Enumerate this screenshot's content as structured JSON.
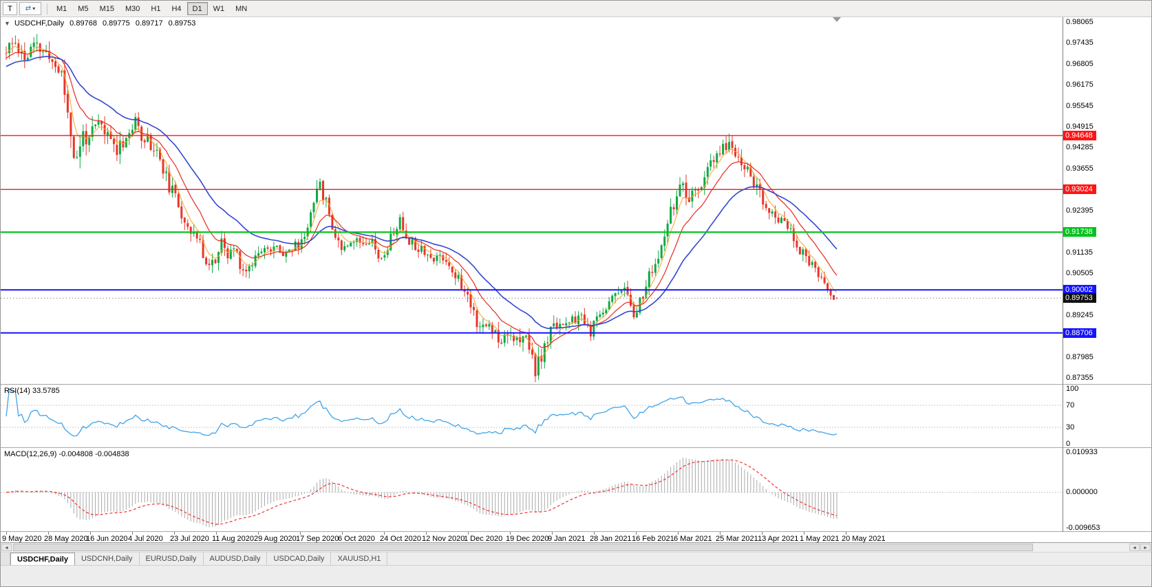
{
  "icons": {
    "left_arrow": "◄",
    "right_arrow": "►"
  },
  "toolbar": {
    "t_button_label": "T",
    "pointer_glyph": "⇄",
    "dropdown_glyph": "▾",
    "timeframes": [
      "M1",
      "M5",
      "M15",
      "M30",
      "H1",
      "H4",
      "D1",
      "W1",
      "MN"
    ],
    "active_timeframe": "D1"
  },
  "chart": {
    "title": "USDCHF,Daily",
    "collapse_glyph": "▼",
    "ohlc": {
      "open": "0.89768",
      "high": "0.89775",
      "low": "0.89717",
      "close": "0.89753"
    },
    "axis_range": {
      "top": 0.98065,
      "bottom": 0.87355
    },
    "price_axis": [
      "0.98065",
      "0.97435",
      "0.96805",
      "0.96175",
      "0.95545",
      "0.94915",
      "0.94285",
      "0.93655",
      "0.93025",
      "0.92395",
      "0.91765",
      "0.91135",
      "0.90505",
      "0.89875",
      "0.89245",
      "0.88615",
      "0.87985",
      "0.87355"
    ],
    "levels": [
      {
        "value": 0.94648,
        "label": "0.94648",
        "color": "#ff1515",
        "width": 1.4
      },
      {
        "value": 0.93024,
        "label": "0.93024",
        "color": "#ff1515",
        "width": 1.4
      },
      {
        "value": 0.91738,
        "label": "0.91738",
        "color": "#05c31f",
        "width": 2.2
      },
      {
        "value": 0.90002,
        "label": "0.90002",
        "color": "#1414ff",
        "width": 2
      },
      {
        "value": 0.88706,
        "label": "0.88706",
        "color": "#1414ff",
        "width": 2
      }
    ],
    "current_price": {
      "value": 0.89753,
      "label": "0.89753",
      "badge_color": "#101010",
      "line_color": "#8a8a8a"
    },
    "date_axis": [
      "9 May 2020",
      "28 May 2020",
      "16 Jun 2020",
      "4 Jul 2020",
      "23 Jul 2020",
      "11 Aug 2020",
      "29 Aug 2020",
      "17 Sep 2020",
      "6 Oct 2020",
      "24 Oct 2020",
      "12 Nov 2020",
      "1 Dec 2020",
      "19 Dec 2020",
      "9 Jan 2021",
      "28 Jan 2021",
      "16 Feb 2021",
      "6 Mar 2021",
      "25 Mar 2021",
      "13 Apr 2021",
      "1 May 2021",
      "20 May 2021"
    ]
  },
  "chart_data": {
    "type": "candlestick",
    "symbol": "USDCHF",
    "period": "Daily",
    "bars_drawn": 271,
    "seed": 11,
    "up_color": "#0ea944",
    "down_color": "#e8352b",
    "close_waypoints": [
      [
        0,
        0.9712
      ],
      [
        3,
        0.9748
      ],
      [
        6,
        0.9696
      ],
      [
        9,
        0.9732
      ],
      [
        12,
        0.9718
      ],
      [
        15,
        0.9688
      ],
      [
        18,
        0.965
      ],
      [
        20,
        0.954
      ],
      [
        22,
        0.941
      ],
      [
        23,
        0.9385
      ],
      [
        25,
        0.9472
      ],
      [
        27,
        0.945
      ],
      [
        30,
        0.95
      ],
      [
        33,
        0.9462
      ],
      [
        36,
        0.9428
      ],
      [
        39,
        0.9462
      ],
      [
        42,
        0.9498
      ],
      [
        44,
        0.9472
      ],
      [
        47,
        0.944
      ],
      [
        50,
        0.9398
      ],
      [
        52,
        0.9335
      ],
      [
        54,
        0.9292
      ],
      [
        56,
        0.9252
      ],
      [
        58,
        0.9215
      ],
      [
        60,
        0.9185
      ],
      [
        62,
        0.9152
      ],
      [
        64,
        0.9112
      ],
      [
        66,
        0.9078
      ],
      [
        68,
        0.9088
      ],
      [
        70,
        0.9138
      ],
      [
        72,
        0.9098
      ],
      [
        74,
        0.9128
      ],
      [
        76,
        0.9082
      ],
      [
        78,
        0.9052
      ],
      [
        80,
        0.9088
      ],
      [
        82,
        0.9118
      ],
      [
        84,
        0.9142
      ],
      [
        86,
        0.9112
      ],
      [
        88,
        0.9128
      ],
      [
        90,
        0.9118
      ],
      [
        93,
        0.9125
      ],
      [
        96,
        0.9142
      ],
      [
        98,
        0.9192
      ],
      [
        100,
        0.9282
      ],
      [
        101,
        0.9318
      ],
      [
        103,
        0.9292
      ],
      [
        105,
        0.9232
      ],
      [
        107,
        0.9165
      ],
      [
        109,
        0.9132
      ],
      [
        112,
        0.9152
      ],
      [
        115,
        0.9145
      ],
      [
        118,
        0.9158
      ],
      [
        120,
        0.9132
      ],
      [
        122,
        0.9085
      ],
      [
        124,
        0.9132
      ],
      [
        126,
        0.9178
      ],
      [
        128,
        0.9205
      ],
      [
        130,
        0.9162
      ],
      [
        133,
        0.9138
      ],
      [
        136,
        0.9122
      ],
      [
        139,
        0.9085
      ],
      [
        141,
        0.9108
      ],
      [
        143,
        0.9092
      ],
      [
        145,
        0.9062
      ],
      [
        147,
        0.9032
      ],
      [
        149,
        0.8992
      ],
      [
        151,
        0.8962
      ],
      [
        153,
        0.8908
      ],
      [
        155,
        0.8882
      ],
      [
        157,
        0.8896
      ],
      [
        159,
        0.8872
      ],
      [
        161,
        0.8852
      ],
      [
        163,
        0.8882
      ],
      [
        165,
        0.8858
      ],
      [
        167,
        0.8832
      ],
      [
        169,
        0.8856
      ],
      [
        171,
        0.8802
      ],
      [
        172,
        0.8762
      ],
      [
        174,
        0.8792
      ],
      [
        176,
        0.8852
      ],
      [
        178,
        0.8892
      ],
      [
        180,
        0.8906
      ],
      [
        183,
        0.8892
      ],
      [
        186,
        0.8922
      ],
      [
        188,
        0.8896
      ],
      [
        190,
        0.8872
      ],
      [
        192,
        0.8906
      ],
      [
        194,
        0.8942
      ],
      [
        196,
        0.8962
      ],
      [
        198,
        0.8992
      ],
      [
        200,
        0.9012
      ],
      [
        202,
        0.8976
      ],
      [
        204,
        0.8936
      ],
      [
        206,
        0.8962
      ],
      [
        208,
        0.9012
      ],
      [
        210,
        0.9062
      ],
      [
        212,
        0.9092
      ],
      [
        214,
        0.9152
      ],
      [
        216,
        0.9232
      ],
      [
        218,
        0.9292
      ],
      [
        220,
        0.9302
      ],
      [
        222,
        0.9262
      ],
      [
        224,
        0.9292
      ],
      [
        226,
        0.9322
      ],
      [
        228,
        0.9356
      ],
      [
        230,
        0.9386
      ],
      [
        232,
        0.9412
      ],
      [
        234,
        0.9438
      ],
      [
        236,
        0.9426
      ],
      [
        238,
        0.9402
      ],
      [
        240,
        0.9372
      ],
      [
        242,
        0.9342
      ],
      [
        244,
        0.9312
      ],
      [
        246,
        0.9258
      ],
      [
        248,
        0.9232
      ],
      [
        250,
        0.9206
      ],
      [
        252,
        0.9232
      ],
      [
        254,
        0.9192
      ],
      [
        256,
        0.9152
      ],
      [
        258,
        0.9122
      ],
      [
        260,
        0.9098
      ],
      [
        262,
        0.9072
      ],
      [
        264,
        0.9042
      ],
      [
        266,
        0.9012
      ],
      [
        268,
        0.8992
      ],
      [
        270,
        0.89753
      ]
    ],
    "volatility_waypoints": [
      [
        0,
        0.0062
      ],
      [
        15,
        0.0052
      ],
      [
        20,
        0.0075
      ],
      [
        26,
        0.0062
      ],
      [
        40,
        0.0052
      ],
      [
        55,
        0.005
      ],
      [
        70,
        0.0046
      ],
      [
        85,
        0.004
      ],
      [
        95,
        0.0042
      ],
      [
        101,
        0.0052
      ],
      [
        110,
        0.004
      ],
      [
        125,
        0.004
      ],
      [
        140,
        0.0042
      ],
      [
        155,
        0.0046
      ],
      [
        165,
        0.0048
      ],
      [
        172,
        0.0058
      ],
      [
        180,
        0.0042
      ],
      [
        195,
        0.004
      ],
      [
        208,
        0.0044
      ],
      [
        220,
        0.005
      ],
      [
        234,
        0.0052
      ],
      [
        245,
        0.0046
      ],
      [
        258,
        0.0038
      ],
      [
        270,
        0.003
      ]
    ],
    "anchors": [
      {
        "bar": 101,
        "high": 0.9331
      },
      {
        "bar": 172,
        "low": 0.87455
      },
      {
        "bar": 234,
        "high": 0.94645
      }
    ],
    "moving_averages": [
      {
        "period": 5,
        "color": "#f5a623",
        "width": 1,
        "seed": 0.971
      },
      {
        "period": 13,
        "color": "#e8281e",
        "width": 1.2,
        "seed": 0.9695
      },
      {
        "period": 30,
        "color": "#3347cf",
        "width": 1.6,
        "seed": 0.967
      }
    ]
  },
  "rsi": {
    "label": "RSI(14) 33.5785",
    "period": 14,
    "value": "33.5785",
    "color": "#3fa3e8",
    "range": [
      0,
      100
    ],
    "levels": [
      70,
      30
    ],
    "axis": [
      "100",
      "70",
      "30",
      "0"
    ]
  },
  "macd": {
    "label": "MACD(12,26,9) -0.004808 -0.004838",
    "fast": 12,
    "slow": 26,
    "signal": 9,
    "value": "-0.004808",
    "signal_value": "-0.004838",
    "histogram_color": "#a8a8a8",
    "signal_color": "#f03030",
    "range": [
      -0.009653,
      0.010933
    ],
    "axis": [
      "0.010933",
      "0.000000",
      "-0.009653"
    ]
  },
  "tabs": {
    "active": "USDCHF,Daily",
    "items": [
      "USDCHF,Daily",
      "USDCNH,Daily",
      "EURUSD,Daily",
      "AUDUSD,Daily",
      "USDCAD,Daily",
      "XAUUSD,H1"
    ]
  }
}
